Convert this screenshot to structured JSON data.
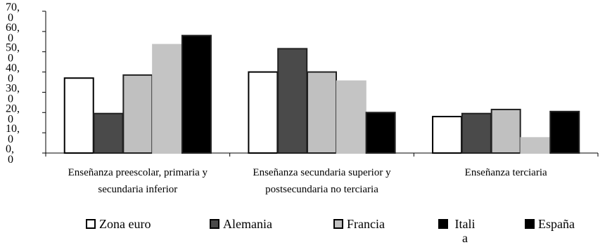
{
  "chart_data": {
    "type": "bar",
    "categories": [
      "Enseñanza preescolar, primaria y secundaria inferior",
      "Enseñanza secundaria superior y postsecundaria no terciaria",
      "Enseñanza terciaria"
    ],
    "category_lines": [
      [
        "Enseñanza preescolar, primaria y",
        "secundaria inferior"
      ],
      [
        "Enseñanza secundaria superior y",
        "postsecundaria no terciaria"
      ],
      [
        "Enseñanza terciaria"
      ]
    ],
    "series": [
      {
        "name": "Zona euro",
        "values": [
          37,
          40,
          18
        ],
        "fill": "#ffffff",
        "stroke": "#000000"
      },
      {
        "name": "Alemania",
        "values": [
          19.5,
          51.5,
          19.5
        ],
        "fill": "#4a4a4a",
        "stroke": "#222222"
      },
      {
        "name": "Francia",
        "values": [
          38.5,
          40,
          21.5
        ],
        "fill": "#c0c0c0",
        "stroke": "#222222"
      },
      {
        "name": "Itali a",
        "values": [
          53.5,
          35.5,
          7.5
        ],
        "fill": "#c4c4c4",
        "stroke": "#c4c4c4"
      },
      {
        "name": "España",
        "values": [
          58,
          20,
          20.5
        ],
        "fill": "#000000",
        "stroke": "#222222"
      }
    ],
    "ylim": [
      0,
      70
    ],
    "ytick_values": [
      0,
      10,
      20,
      30,
      40,
      50,
      60,
      70
    ],
    "ytick_labels": [
      "0,\n0",
      "10,\n0",
      "20,\n0",
      "30,\n0",
      "40,\n0",
      "50,\n0",
      "60,\n0",
      "70,\n0"
    ],
    "title": "",
    "xlabel": "",
    "ylabel": "",
    "grid": false,
    "legend_position": "bottom"
  },
  "legend": [
    {
      "label": "Zona euro",
      "fill": "#ffffff"
    },
    {
      "label": "Alemania",
      "fill": "#4a4a4a"
    },
    {
      "label": "Francia",
      "fill": "#c0c0c0"
    },
    {
      "label": "Itali\na",
      "fill": "#000000"
    },
    {
      "label": "España",
      "fill": "#000000"
    }
  ]
}
